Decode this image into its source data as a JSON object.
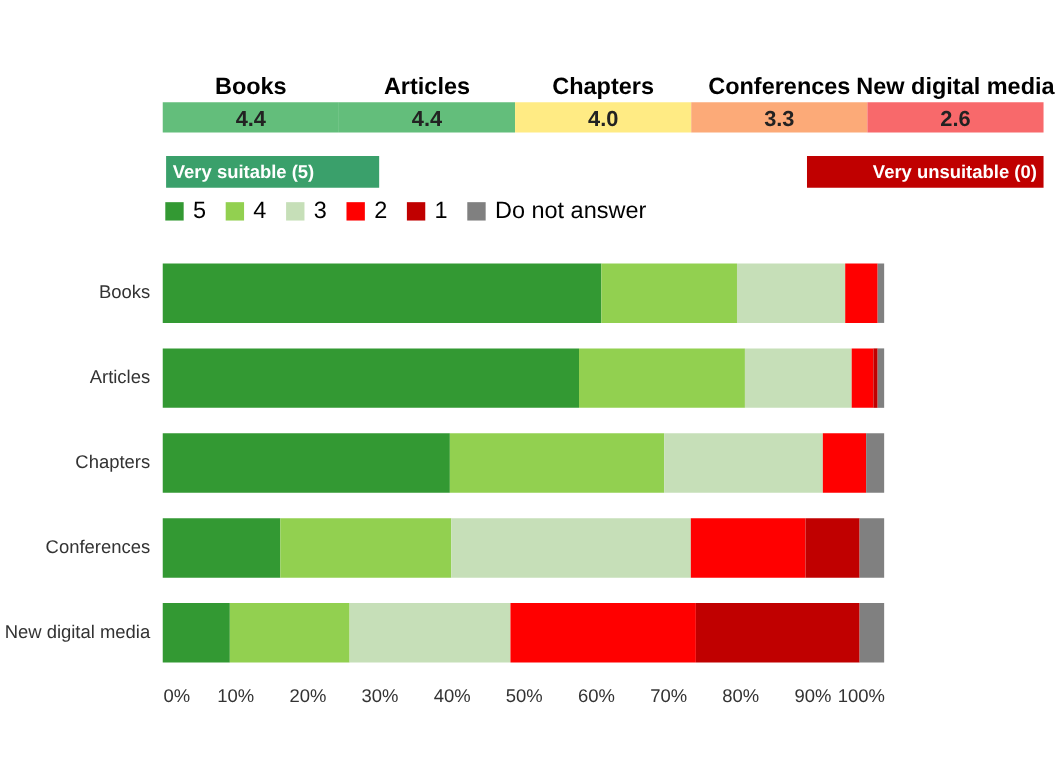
{
  "chart_data": [
    {
      "type": "other",
      "categories": [
        "Books",
        "Articles",
        "Chapters",
        "Conferences",
        "New digital media"
      ],
      "values": [
        4.4,
        4.4,
        4.0,
        3.3,
        2.6
      ],
      "value_labels": [
        "4.4",
        "4.4",
        "4.0",
        "3.3",
        "2.6"
      ],
      "colors": [
        "#63be7b",
        "#63be7b",
        "#ffeb84",
        "#f8a26f",
        "#f8696b"
      ],
      "annotations": [
        "Very suitable (5)",
        "Very unsuitable (0)"
      ]
    },
    {
      "type": "bar",
      "orientation": "horizontal",
      "stacked": true,
      "legend": "top",
      "categories": [
        "Books",
        "Articles",
        "Chapters",
        "Conferences",
        "New digital media"
      ],
      "series": [
        {
          "name": "5",
          "color": "#339933",
          "values": [
            60.8,
            57.7,
            39.8,
            16.3,
            9.3
          ]
        },
        {
          "name": "4",
          "color": "#92d050",
          "values": [
            18.8,
            23.0,
            29.7,
            23.7,
            16.6
          ]
        },
        {
          "name": "3",
          "color": "#c6dfb8",
          "values": [
            15.0,
            14.8,
            22.0,
            33.2,
            22.3
          ]
        },
        {
          "name": "2",
          "color": "#ff0000",
          "values": [
            4.5,
            3.0,
            6.0,
            15.9,
            25.7
          ]
        },
        {
          "name": "1",
          "color": "#c00000",
          "values": [
            0,
            0.6,
            0,
            7.5,
            22.7
          ]
        },
        {
          "name": "Do not answer",
          "color": "#808080",
          "values": [
            0.9,
            0.9,
            2.5,
            3.4,
            3.4
          ]
        }
      ],
      "xlim": [
        0,
        100
      ],
      "xticks": [
        {
          "value": 0,
          "label": "0%"
        },
        {
          "value": 10,
          "label": "10%"
        },
        {
          "value": 20,
          "label": "20%"
        },
        {
          "value": 30,
          "label": "30%"
        },
        {
          "value": 40,
          "label": "40%"
        },
        {
          "value": 50,
          "label": "50%"
        },
        {
          "value": 60,
          "label": "60%"
        },
        {
          "value": 70,
          "label": "70%"
        },
        {
          "value": 80,
          "label": "80%"
        },
        {
          "value": 90,
          "label": "90%"
        },
        {
          "value": 100,
          "label": "100%"
        }
      ]
    }
  ]
}
